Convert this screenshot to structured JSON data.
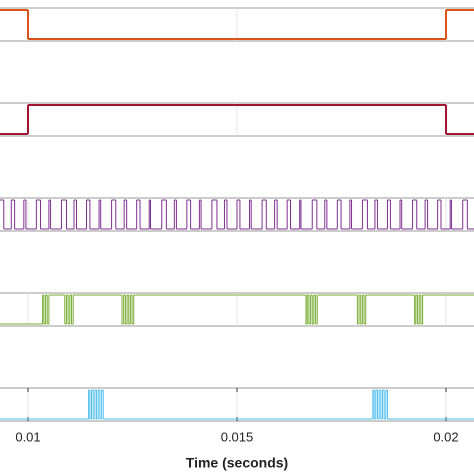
{
  "chart_data": [
    {
      "type": "step",
      "color": "#d95319",
      "xlim": [
        0.00933,
        0.02067
      ],
      "ylim": [
        0,
        1
      ],
      "x": [
        0.00933,
        0.01,
        0.02
      ],
      "values": [
        1,
        0,
        1
      ]
    },
    {
      "type": "step",
      "color": "#a2142f",
      "xlim": [
        0.00933,
        0.02067
      ],
      "ylim": [
        0,
        1
      ],
      "x": [
        0.00933,
        0.01,
        0.02
      ],
      "values": [
        0,
        1,
        0
      ]
    },
    {
      "type": "step",
      "color": "#7e2f8e",
      "xlim": [
        0.00933,
        0.02067
      ],
      "ylim": [
        0,
        1
      ],
      "x": [
        0.00933,
        0.00942,
        0.0096,
        0.00968,
        0.0099,
        0.00995,
        0.0102,
        0.0103,
        0.0105,
        0.01054,
        0.0108,
        0.01092,
        0.0111,
        0.01116,
        0.0114,
        0.01148,
        0.0117,
        0.01174,
        0.012,
        0.0121,
        0.0123,
        0.01236,
        0.0126,
        0.01268,
        0.0129,
        0.01293,
        0.0132,
        0.01331,
        0.0135,
        0.01355,
        0.0138,
        0.01389,
        0.0141,
        0.01414,
        0.0144,
        0.01452,
        0.0147,
        0.01476,
        0.015,
        0.01507,
        0.0153,
        0.01534,
        0.0156,
        0.0157,
        0.0159,
        0.01596,
        0.0162,
        0.01628,
        0.0165,
        0.01653,
        0.0168,
        0.01691,
        0.0171,
        0.01715,
        0.0174,
        0.01749,
        0.0177,
        0.01774,
        0.018,
        0.01812,
        0.0183,
        0.01836,
        0.0186,
        0.01867,
        0.0189,
        0.01894,
        0.0192,
        0.0193,
        0.0195,
        0.01956,
        0.0198,
        0.01988,
        0.0201,
        0.02013,
        0.0204,
        0.02051
      ],
      "values": [
        1,
        0,
        1,
        0,
        1,
        0,
        1,
        0,
        1,
        0,
        1,
        0,
        1,
        0,
        1,
        0,
        1,
        0,
        1,
        0,
        1,
        0,
        1,
        0,
        1,
        0,
        1,
        0,
        1,
        0,
        1,
        0,
        1,
        0,
        1,
        0,
        1,
        0,
        1,
        0,
        1,
        0,
        1,
        0,
        1,
        0,
        1,
        0,
        1,
        0,
        1,
        0,
        1,
        0,
        1,
        0,
        1,
        0,
        1,
        0,
        1,
        0,
        1,
        0,
        1,
        0,
        1,
        0,
        1,
        0,
        1,
        0,
        1,
        0,
        1,
        0
      ]
    },
    {
      "type": "step",
      "color": "#77ac30",
      "xlim": [
        0.00933,
        0.02067
      ],
      "ylim": [
        0,
        1
      ],
      "x": [
        0.00933,
        0.01035,
        0.01038,
        0.01042,
        0.01046,
        0.0105,
        0.01088,
        0.01092,
        0.01096,
        0.011,
        0.01104,
        0.01108,
        0.01225,
        0.01229,
        0.01233,
        0.01237,
        0.01241,
        0.01245,
        0.01249,
        0.01253,
        0.01665,
        0.01668,
        0.01672,
        0.01676,
        0.0168,
        0.01684,
        0.01688,
        0.01692,
        0.01788,
        0.01792,
        0.01796,
        0.018,
        0.01804,
        0.01808,
        0.01925,
        0.01928,
        0.01932,
        0.01936,
        0.0194,
        0.01944
      ],
      "values": [
        0,
        1,
        0,
        1,
        0,
        1,
        0,
        1,
        0,
        1,
        0,
        1,
        0,
        1,
        0,
        1,
        0,
        1,
        0,
        1,
        0,
        1,
        0,
        1,
        0,
        1,
        0,
        1,
        0,
        1,
        0,
        1,
        0,
        1,
        0,
        1,
        0,
        1,
        0,
        1
      ]
    },
    {
      "type": "step",
      "color": "#4dbeee",
      "xlim": [
        0.00933,
        0.02067
      ],
      "ylim": [
        0,
        1
      ],
      "x": [
        0.00933,
        0.01145,
        0.01148,
        0.01152,
        0.01156,
        0.0116,
        0.01164,
        0.01168,
        0.01172,
        0.01176,
        0.0118,
        0.01825,
        0.01828,
        0.01832,
        0.01836,
        0.0184,
        0.01844,
        0.01848,
        0.01852,
        0.01856,
        0.0186
      ],
      "values": [
        0,
        1,
        0,
        1,
        0,
        1,
        0,
        1,
        0,
        1,
        0,
        1,
        0,
        1,
        0,
        1,
        0,
        1,
        0,
        1,
        0
      ],
      "xticks": [
        0.01,
        0.015,
        0.02
      ],
      "xlabel": "Time (seconds)"
    }
  ]
}
